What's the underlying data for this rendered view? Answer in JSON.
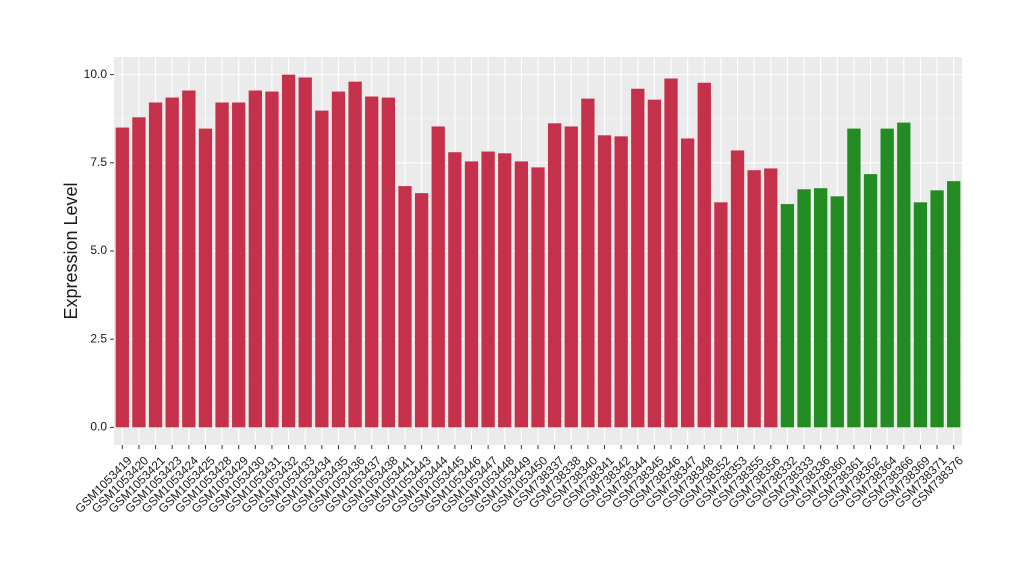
{
  "chart_data": {
    "type": "bar",
    "y_label": "Expression Level",
    "categories": [
      "GSM1053419",
      "GSM1053420",
      "GSM1053421",
      "GSM1053423",
      "GSM1053424",
      "GSM1053425",
      "GSM1053428",
      "GSM1053429",
      "GSM1053430",
      "GSM1053431",
      "GSM1053432",
      "GSM1053433",
      "GSM1053434",
      "GSM1053435",
      "GSM1053436",
      "GSM1053437",
      "GSM1053438",
      "GSM1053441",
      "GSM1053443",
      "GSM1053444",
      "GSM1053445",
      "GSM1053446",
      "GSM1053447",
      "GSM1053448",
      "GSM1053449",
      "GSM1053450",
      "GSM738337",
      "GSM738338",
      "GSM738340",
      "GSM738341",
      "GSM738342",
      "GSM738344",
      "GSM738345",
      "GSM738346",
      "GSM738347",
      "GSM738348",
      "GSM738352",
      "GSM738353",
      "GSM738355",
      "GSM738356",
      "GSM738332",
      "GSM738333",
      "GSM738336",
      "GSM738360",
      "GSM738361",
      "GSM738362",
      "GSM738364",
      "GSM738366",
      "GSM738369",
      "GSM738371",
      "GSM738376"
    ],
    "values": [
      8.5,
      8.79,
      9.21,
      9.35,
      9.55,
      8.47,
      9.21,
      9.21,
      9.55,
      9.52,
      10.0,
      9.92,
      8.98,
      9.52,
      9.8,
      9.38,
      9.35,
      6.84,
      6.64,
      8.53,
      7.8,
      7.54,
      7.82,
      7.77,
      7.54,
      7.37,
      8.62,
      8.53,
      9.32,
      8.28,
      8.25,
      9.6,
      9.29,
      9.89,
      8.19,
      9.77,
      6.38,
      7.85,
      7.29,
      7.34,
      6.33,
      6.75,
      6.78,
      6.55,
      8.47,
      7.18,
      8.47,
      8.64,
      6.38,
      6.72,
      6.98
    ],
    "colors": [
      "#c5314a",
      "#c5314a",
      "#c5314a",
      "#c5314a",
      "#c5314a",
      "#c5314a",
      "#c5314a",
      "#c5314a",
      "#c5314a",
      "#c5314a",
      "#c5314a",
      "#c5314a",
      "#c5314a",
      "#c5314a",
      "#c5314a",
      "#c5314a",
      "#c5314a",
      "#c5314a",
      "#c5314a",
      "#c5314a",
      "#c5314a",
      "#c5314a",
      "#c5314a",
      "#c5314a",
      "#c5314a",
      "#c5314a",
      "#c5314a",
      "#c5314a",
      "#c5314a",
      "#c5314a",
      "#c5314a",
      "#c5314a",
      "#c5314a",
      "#c5314a",
      "#c5314a",
      "#c5314a",
      "#c5314a",
      "#c5314a",
      "#c5314a",
      "#c5314a",
      "#228b22",
      "#228b22",
      "#228b22",
      "#228b22",
      "#228b22",
      "#228b22",
      "#228b22",
      "#228b22",
      "#228b22",
      "#228b22",
      "#228b22"
    ],
    "ylim": [
      -0.5,
      10.5
    ],
    "yticks": [
      {
        "value": 0,
        "label": "0.0"
      },
      {
        "value": 2.5,
        "label": "2.5"
      },
      {
        "value": 5,
        "label": "5.0"
      },
      {
        "value": 7.5,
        "label": "7.5"
      },
      {
        "value": 10,
        "label": "10.0"
      }
    ],
    "grid": true
  }
}
